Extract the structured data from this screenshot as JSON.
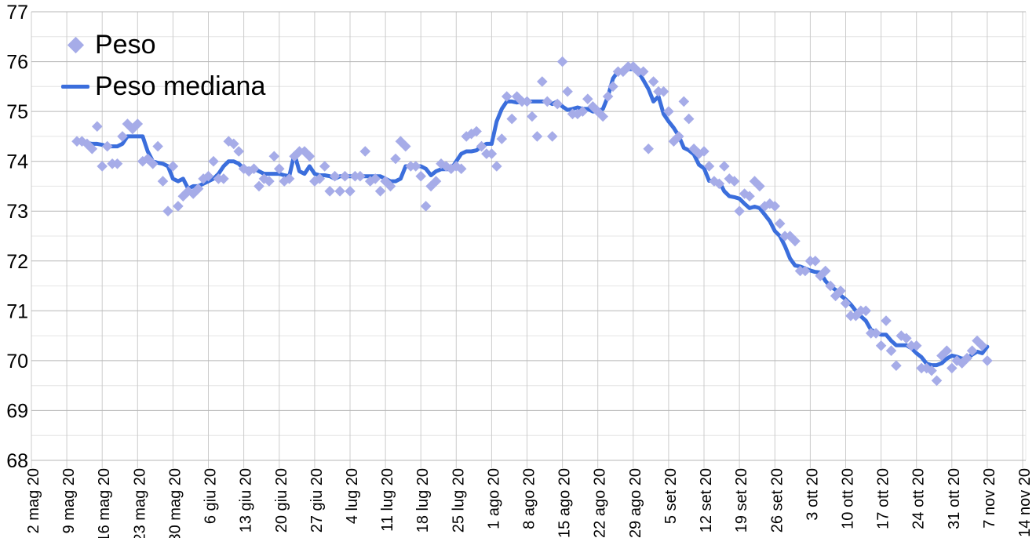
{
  "chart_data": {
    "type": "scatter",
    "title": "",
    "legend_position": "top-left",
    "grid": {
      "vertical_color": "#cccccc",
      "major_horizontal_color": "#b7b7b7",
      "minor_horizontal_color": "#e4e4e4"
    },
    "y_axis": {
      "min": 68,
      "max": 77,
      "major_step": 1,
      "minor_step": 0.5,
      "tick_labels": [
        "68",
        "69",
        "70",
        "71",
        "72",
        "73",
        "74",
        "75",
        "76",
        "77"
      ]
    },
    "x_axis": {
      "day0_label": "2 mag 20",
      "total_days": 196,
      "tick_every_days": 7,
      "tick_labels": [
        "2 mag 20",
        "9 mag 20",
        "16 mag 20",
        "23 mag 20",
        "30 mag 20",
        "6 giu 20",
        "13 giu 20",
        "20 giu 20",
        "27 giu 20",
        "4 lug 20",
        "11 lug 20",
        "18 lug 20",
        "25 lug 20",
        "1 ago 20",
        "8 ago 20",
        "15 ago 20",
        "22 ago 20",
        "29 ago 20",
        "5 set 20",
        "12 set 20",
        "19 set 20",
        "26 set 20",
        "3 ott 20",
        "10 ott 20",
        "17 ott 20",
        "24 ott 20",
        "31 ott 20",
        "7 nov 20",
        "14 nov 20"
      ]
    },
    "series": [
      {
        "name": "Peso",
        "type": "scatter",
        "marker": "diamond",
        "color": "#a6ace8",
        "start_day_offset": 9,
        "day_step": 1,
        "values": [
          74.4,
          74.4,
          74.35,
          74.25,
          74.7,
          73.9,
          74.3,
          73.95,
          73.95,
          74.5,
          74.75,
          74.65,
          74.75,
          74.0,
          74.05,
          73.95,
          74.3,
          73.6,
          73.0,
          73.9,
          73.1,
          73.3,
          73.4,
          73.35,
          73.45,
          73.65,
          73.7,
          74.0,
          73.65,
          73.65,
          74.4,
          74.35,
          74.2,
          73.85,
          73.8,
          73.85,
          73.5,
          73.65,
          73.6,
          74.1,
          73.85,
          73.6,
          73.65,
          74.1,
          74.2,
          74.2,
          74.1,
          73.6,
          73.65,
          73.9,
          73.4,
          73.7,
          73.4,
          73.7,
          73.4,
          73.7,
          73.7,
          74.2,
          73.6,
          73.65,
          73.4,
          73.6,
          73.5,
          74.05,
          74.4,
          74.3,
          73.9,
          73.9,
          73.7,
          73.1,
          73.5,
          73.6,
          73.95,
          73.9,
          73.85,
          73.9,
          73.85,
          74.5,
          74.55,
          74.6,
          74.3,
          74.15,
          74.15,
          73.9,
          74.45,
          75.3,
          74.85,
          75.3,
          75.2,
          75.2,
          74.9,
          74.5,
          75.6,
          75.2,
          74.5,
          75.15,
          76.0,
          75.4,
          74.95,
          74.95,
          75.0,
          75.25,
          75.1,
          75.0,
          74.9,
          75.3,
          75.5,
          75.8,
          75.8,
          75.9,
          75.9,
          75.8,
          75.8,
          74.25,
          75.6,
          75.4,
          75.4,
          75.0,
          74.4,
          74.5,
          75.2,
          74.85,
          74.25,
          74.15,
          74.2,
          73.9,
          73.6,
          73.55,
          73.9,
          73.65,
          73.6,
          73.0,
          73.35,
          73.3,
          73.6,
          73.5,
          73.1,
          73.15,
          73.1,
          72.75,
          72.5,
          72.5,
          72.4,
          71.8,
          71.8,
          72.0,
          72.0,
          71.7,
          71.8,
          71.5,
          71.3,
          71.4,
          71.15,
          70.9,
          70.9,
          71.0,
          71.0,
          70.55,
          70.55,
          70.3,
          70.8,
          70.2,
          69.9,
          70.5,
          70.45,
          70.3,
          70.3,
          69.85,
          69.85,
          69.8,
          69.6,
          70.1,
          70.2,
          69.85,
          70.0,
          69.95,
          70.05,
          70.2,
          70.4,
          70.3,
          70.0
        ]
      },
      {
        "name": "Peso mediana",
        "type": "line",
        "marker": "line",
        "color": "#3b6edc",
        "start_day_offset": 9,
        "day_step": 1,
        "values": [
          74.4,
          74.4,
          74.37,
          74.35,
          74.35,
          74.33,
          74.3,
          74.3,
          74.3,
          74.35,
          74.5,
          74.5,
          74.5,
          74.5,
          74.2,
          74.0,
          73.97,
          73.95,
          73.9,
          73.65,
          73.6,
          73.65,
          73.45,
          73.5,
          73.5,
          73.55,
          73.6,
          73.65,
          73.75,
          73.9,
          74.0,
          74.0,
          73.95,
          73.85,
          73.85,
          73.85,
          73.8,
          73.75,
          73.75,
          73.75,
          73.75,
          73.72,
          73.7,
          74.15,
          73.8,
          73.75,
          73.9,
          73.75,
          73.72,
          73.72,
          73.7,
          73.65,
          73.7,
          73.7,
          73.7,
          73.7,
          73.7,
          73.7,
          73.7,
          73.7,
          73.7,
          73.65,
          73.6,
          73.6,
          73.65,
          73.9,
          73.9,
          73.9,
          73.9,
          73.85,
          73.72,
          73.8,
          73.84,
          73.84,
          73.84,
          74.0,
          74.15,
          74.2,
          74.2,
          74.22,
          74.3,
          74.35,
          74.35,
          74.8,
          75.05,
          75.2,
          75.2,
          75.18,
          75.2,
          75.2,
          75.2,
          75.2,
          75.2,
          75.2,
          75.15,
          75.2,
          75.1,
          75.03,
          75.05,
          75.08,
          75.05,
          75.05,
          75.0,
          75.0,
          75.05,
          75.3,
          75.66,
          75.81,
          75.79,
          75.85,
          75.85,
          75.8,
          75.63,
          75.45,
          75.2,
          75.3,
          74.95,
          74.8,
          74.67,
          74.51,
          74.27,
          74.22,
          74.14,
          73.93,
          73.86,
          73.61,
          73.61,
          73.59,
          73.4,
          73.3,
          73.28,
          73.25,
          73.15,
          73.06,
          73.09,
          73.06,
          72.93,
          72.8,
          72.6,
          72.5,
          72.3,
          72.05,
          71.91,
          71.89,
          71.85,
          71.81,
          71.78,
          71.77,
          71.6,
          71.49,
          71.42,
          71.31,
          71.23,
          71.13,
          71.0,
          70.89,
          70.8,
          70.62,
          70.57,
          70.52,
          70.52,
          70.4,
          70.31,
          70.31,
          70.31,
          70.25,
          70.15,
          70.07,
          69.94,
          69.91,
          69.91,
          69.95,
          70.04,
          70.1,
          70.08,
          70.04,
          70.05,
          70.12,
          70.18,
          70.15,
          70.28
        ]
      }
    ]
  }
}
